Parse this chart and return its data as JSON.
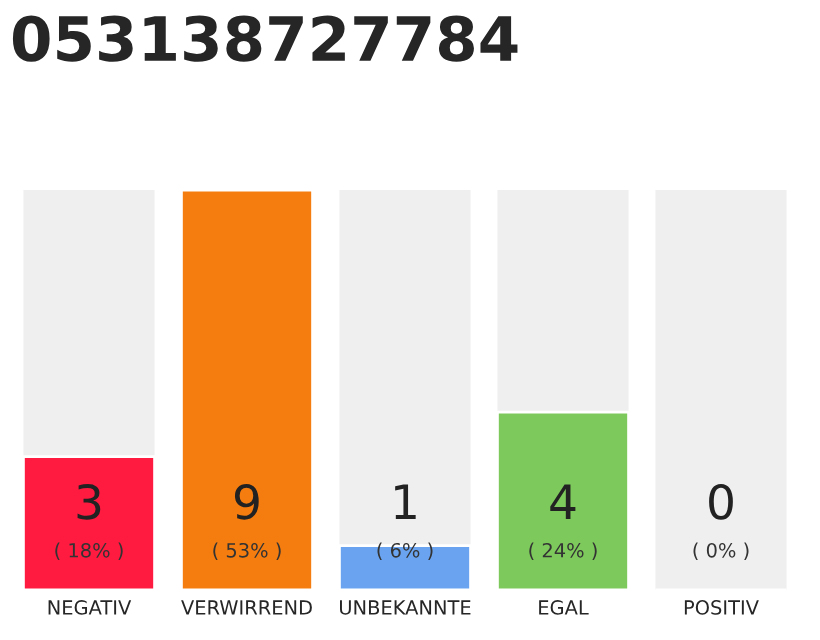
{
  "chart_data": {
    "type": "bar",
    "title": "053138727784",
    "categories": [
      "NEGATIV",
      "VERWIRREND",
      "UNBEKANNTE",
      "EGAL",
      "POSITIV"
    ],
    "values": [
      3,
      9,
      1,
      4,
      0
    ],
    "colors": [
      "#ff1a40",
      "#f57c0f",
      "#6aa4f0",
      "#7ec95c",
      "#efefef"
    ],
    "tick_labels": "x",
    "grid": false,
    "legend": false,
    "value_labels": [
      "3\n( 18% )",
      "9\n( 53% )",
      "1\n( 6% )",
      "4\n( 24% )",
      "0\n( 0% )"
    ]
  }
}
